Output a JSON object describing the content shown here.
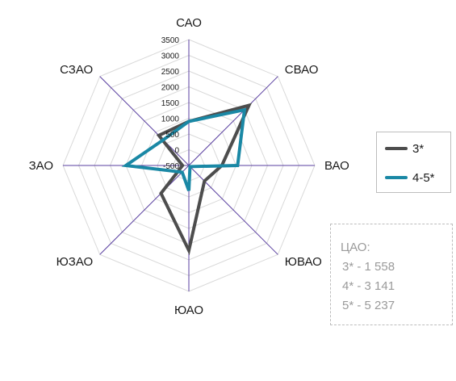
{
  "chart_data": {
    "type": "radar",
    "categories": [
      "САО",
      "СВАО",
      "ВАО",
      "ЮВАО",
      "ЮАО",
      "ЮЗАО",
      "ЗАО",
      "СЗАО"
    ],
    "ticks": [
      "-500",
      "0",
      "500",
      "1000",
      "1500",
      "2000",
      "2500",
      "3000",
      "3500"
    ],
    "range": [
      -500,
      3500
    ],
    "grid": true,
    "series": [
      {
        "name": "3*",
        "color": "#4d4d4d",
        "values": [
          900,
          2200,
          550,
          200,
          2200,
          750,
          -300,
          850
        ]
      },
      {
        "name": "4-5*",
        "color": "#1a88a5",
        "values": [
          900,
          2000,
          1050,
          -450,
          300,
          -200,
          1500,
          650
        ]
      }
    ],
    "legend_position": "right"
  },
  "note": {
    "title": "ЦАО:",
    "lines": [
      "3* - 1 558",
      "4* - 3 141",
      "5* - 5 237"
    ]
  }
}
